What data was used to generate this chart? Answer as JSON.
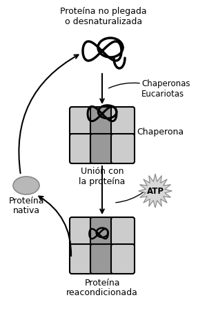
{
  "bg_color": "#ffffff",
  "text_color": "#000000",
  "gray_light": "#cccccc",
  "gray_medium": "#999999",
  "gray_dark": "#888888",
  "gray_oval": "#b8b8b8",
  "labels": {
    "title_line1": "Proteína no plegada",
    "title_line2": "o desnaturalizada",
    "chaperone_euk": "Chaperonas\nEucariotas",
    "chaperona": "Chaperona",
    "union": "Unión con\nla proteína",
    "atp": "ATP",
    "native_line1": "Proteína",
    "native_line2": "nativa",
    "reaconditioned_line1": "Proteína",
    "reaconditioned_line2": "reacondicionada"
  },
  "fontsize_main": 9.0,
  "fontsize_atp": 8.5
}
